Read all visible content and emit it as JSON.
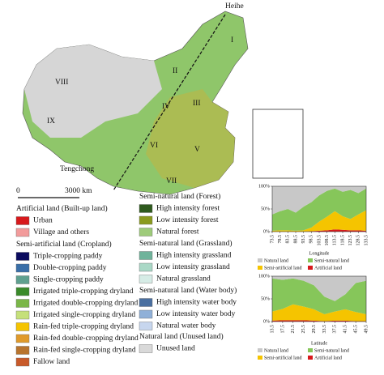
{
  "map": {
    "places": [
      "Heihe",
      "Tengchong"
    ],
    "regions": [
      "I",
      "II",
      "III",
      "IV",
      "V",
      "VI",
      "VII",
      "VIII",
      "IX"
    ],
    "scale": [
      "0",
      "3000 km"
    ]
  },
  "legend": [
    {
      "title": "Artificial land (Built-up land)",
      "items": [
        {
          "label": "Urban",
          "color": "#d7191c"
        },
        {
          "label": "Village and others",
          "color": "#f29b9b"
        }
      ]
    },
    {
      "title": "Semi-artificial land (Cropland)",
      "items": [
        {
          "label": "Triple-cropping paddy",
          "color": "#0b0b5e"
        },
        {
          "label": "Double-cropping paddy",
          "color": "#3a6fa8"
        },
        {
          "label": "Single-cropping paddy",
          "color": "#5fa08f"
        },
        {
          "label": "Irrigated triple-cropping dryland",
          "color": "#3a8a2a"
        },
        {
          "label": "Irrigated double-cropping dryland",
          "color": "#7ab648"
        },
        {
          "label": "Irrigated single-cropping dryland",
          "color": "#c5e07a"
        },
        {
          "label": "Rain-fed triple-cropping dryland",
          "color": "#f5c400"
        },
        {
          "label": "Rain-fed double-cropping dryland",
          "color": "#e09a2a"
        },
        {
          "label": "Rain-fed single-cropping dryland",
          "color": "#b8742e"
        },
        {
          "label": "Fallow land",
          "color": "#c85a2a"
        }
      ]
    },
    {
      "title": "Semi-natural land (Forest)",
      "items": [
        {
          "label": "High intensity forest",
          "color": "#2e5a1e"
        },
        {
          "label": "Low intensity forest",
          "color": "#8a9a1e"
        },
        {
          "label": "Natural forest",
          "color": "#9ecb7a"
        }
      ]
    },
    {
      "title": "Semi-natural land (Grassland)",
      "items": [
        {
          "label": "High intensity grassland",
          "color": "#6fb39b"
        },
        {
          "label": "Low intensity grassland",
          "color": "#a9d8c6"
        },
        {
          "label": "Natural grassland",
          "color": "#d6ece6"
        }
      ]
    },
    {
      "title": "Semi-natural land (Water body)",
      "items": [
        {
          "label": "High intensity water body",
          "color": "#4a6fa0"
        },
        {
          "label": "Low intensity water body",
          "color": "#8fb0d8"
        },
        {
          "label": "Natural water body",
          "color": "#c7d6ee"
        }
      ]
    },
    {
      "title": "Natural land (Unused land)",
      "items": [
        {
          "label": "Unused land",
          "color": "#d9d9d9"
        }
      ]
    }
  ],
  "chart_data": [
    {
      "type": "stacked-area",
      "x_label": "Longitude",
      "x": [
        73.5,
        78.5,
        83.5,
        88.5,
        93.5,
        98.5,
        103.5,
        108.5,
        113.5,
        118.5,
        123.5,
        128.5,
        133.5
      ],
      "xticks": [
        73.5,
        78.5,
        83.5,
        88.5,
        93.5,
        98.5,
        103.5,
        108.5,
        113.5,
        118.5,
        123.5,
        128.5,
        133.5
      ],
      "xlim": [
        73.5,
        133.5
      ],
      "ylim": [
        0,
        100
      ],
      "yticks": [
        {
          "value": 0,
          "label": "0%"
        },
        {
          "value": 50,
          "label": "50%"
        },
        {
          "value": 100,
          "label": "100%"
        }
      ],
      "series": [
        {
          "name": "Artificial land",
          "color": "#d7191c",
          "values": [
            0,
            0,
            0,
            0,
            0,
            1,
            2,
            3,
            5,
            4,
            3,
            3,
            2
          ]
        },
        {
          "name": "Semi-artificial land",
          "color": "#f5c400",
          "values": [
            2,
            3,
            3,
            2,
            3,
            8,
            20,
            30,
            40,
            30,
            25,
            35,
            45
          ]
        },
        {
          "name": "Semi-natural land",
          "color": "#86c65a",
          "values": [
            36,
            42,
            47,
            40,
            52,
            56,
            58,
            57,
            50,
            54,
            64,
            47,
            48
          ]
        },
        {
          "name": "Natural land",
          "color": "#c8c8c8",
          "values": [
            62,
            55,
            50,
            58,
            45,
            35,
            20,
            10,
            5,
            12,
            8,
            15,
            5
          ]
        }
      ]
    },
    {
      "type": "stacked-area",
      "x_label": "Latitude",
      "x": [
        13.5,
        17.5,
        21.5,
        25.5,
        29.5,
        33.5,
        37.5,
        41.5,
        45.5,
        49.5
      ],
      "xticks": [
        13.5,
        17.5,
        21.5,
        25.5,
        29.5,
        33.5,
        37.5,
        41.5,
        45.5,
        49.5
      ],
      "xlim": [
        13.5,
        49.5
      ],
      "ylim": [
        0,
        100
      ],
      "yticks": [
        {
          "value": 0,
          "label": "0%"
        },
        {
          "value": 50,
          "label": "50%"
        },
        {
          "value": 100,
          "label": "100%"
        }
      ],
      "series": [
        {
          "name": "Artificial land",
          "color": "#d7191c",
          "values": [
            2,
            3,
            3,
            3,
            2,
            1,
            2,
            2,
            1,
            1
          ]
        },
        {
          "name": "Semi-artificial land",
          "color": "#f5c400",
          "values": [
            20,
            25,
            35,
            30,
            25,
            15,
            20,
            25,
            20,
            15
          ]
        },
        {
          "name": "Semi-natural land",
          "color": "#86c65a",
          "values": [
            73,
            64,
            57,
            57,
            53,
            39,
            23,
            33,
            64,
            74
          ]
        },
        {
          "name": "Natural land",
          "color": "#c8c8c8",
          "values": [
            5,
            8,
            5,
            10,
            20,
            45,
            55,
            40,
            15,
            10
          ]
        }
      ]
    }
  ]
}
